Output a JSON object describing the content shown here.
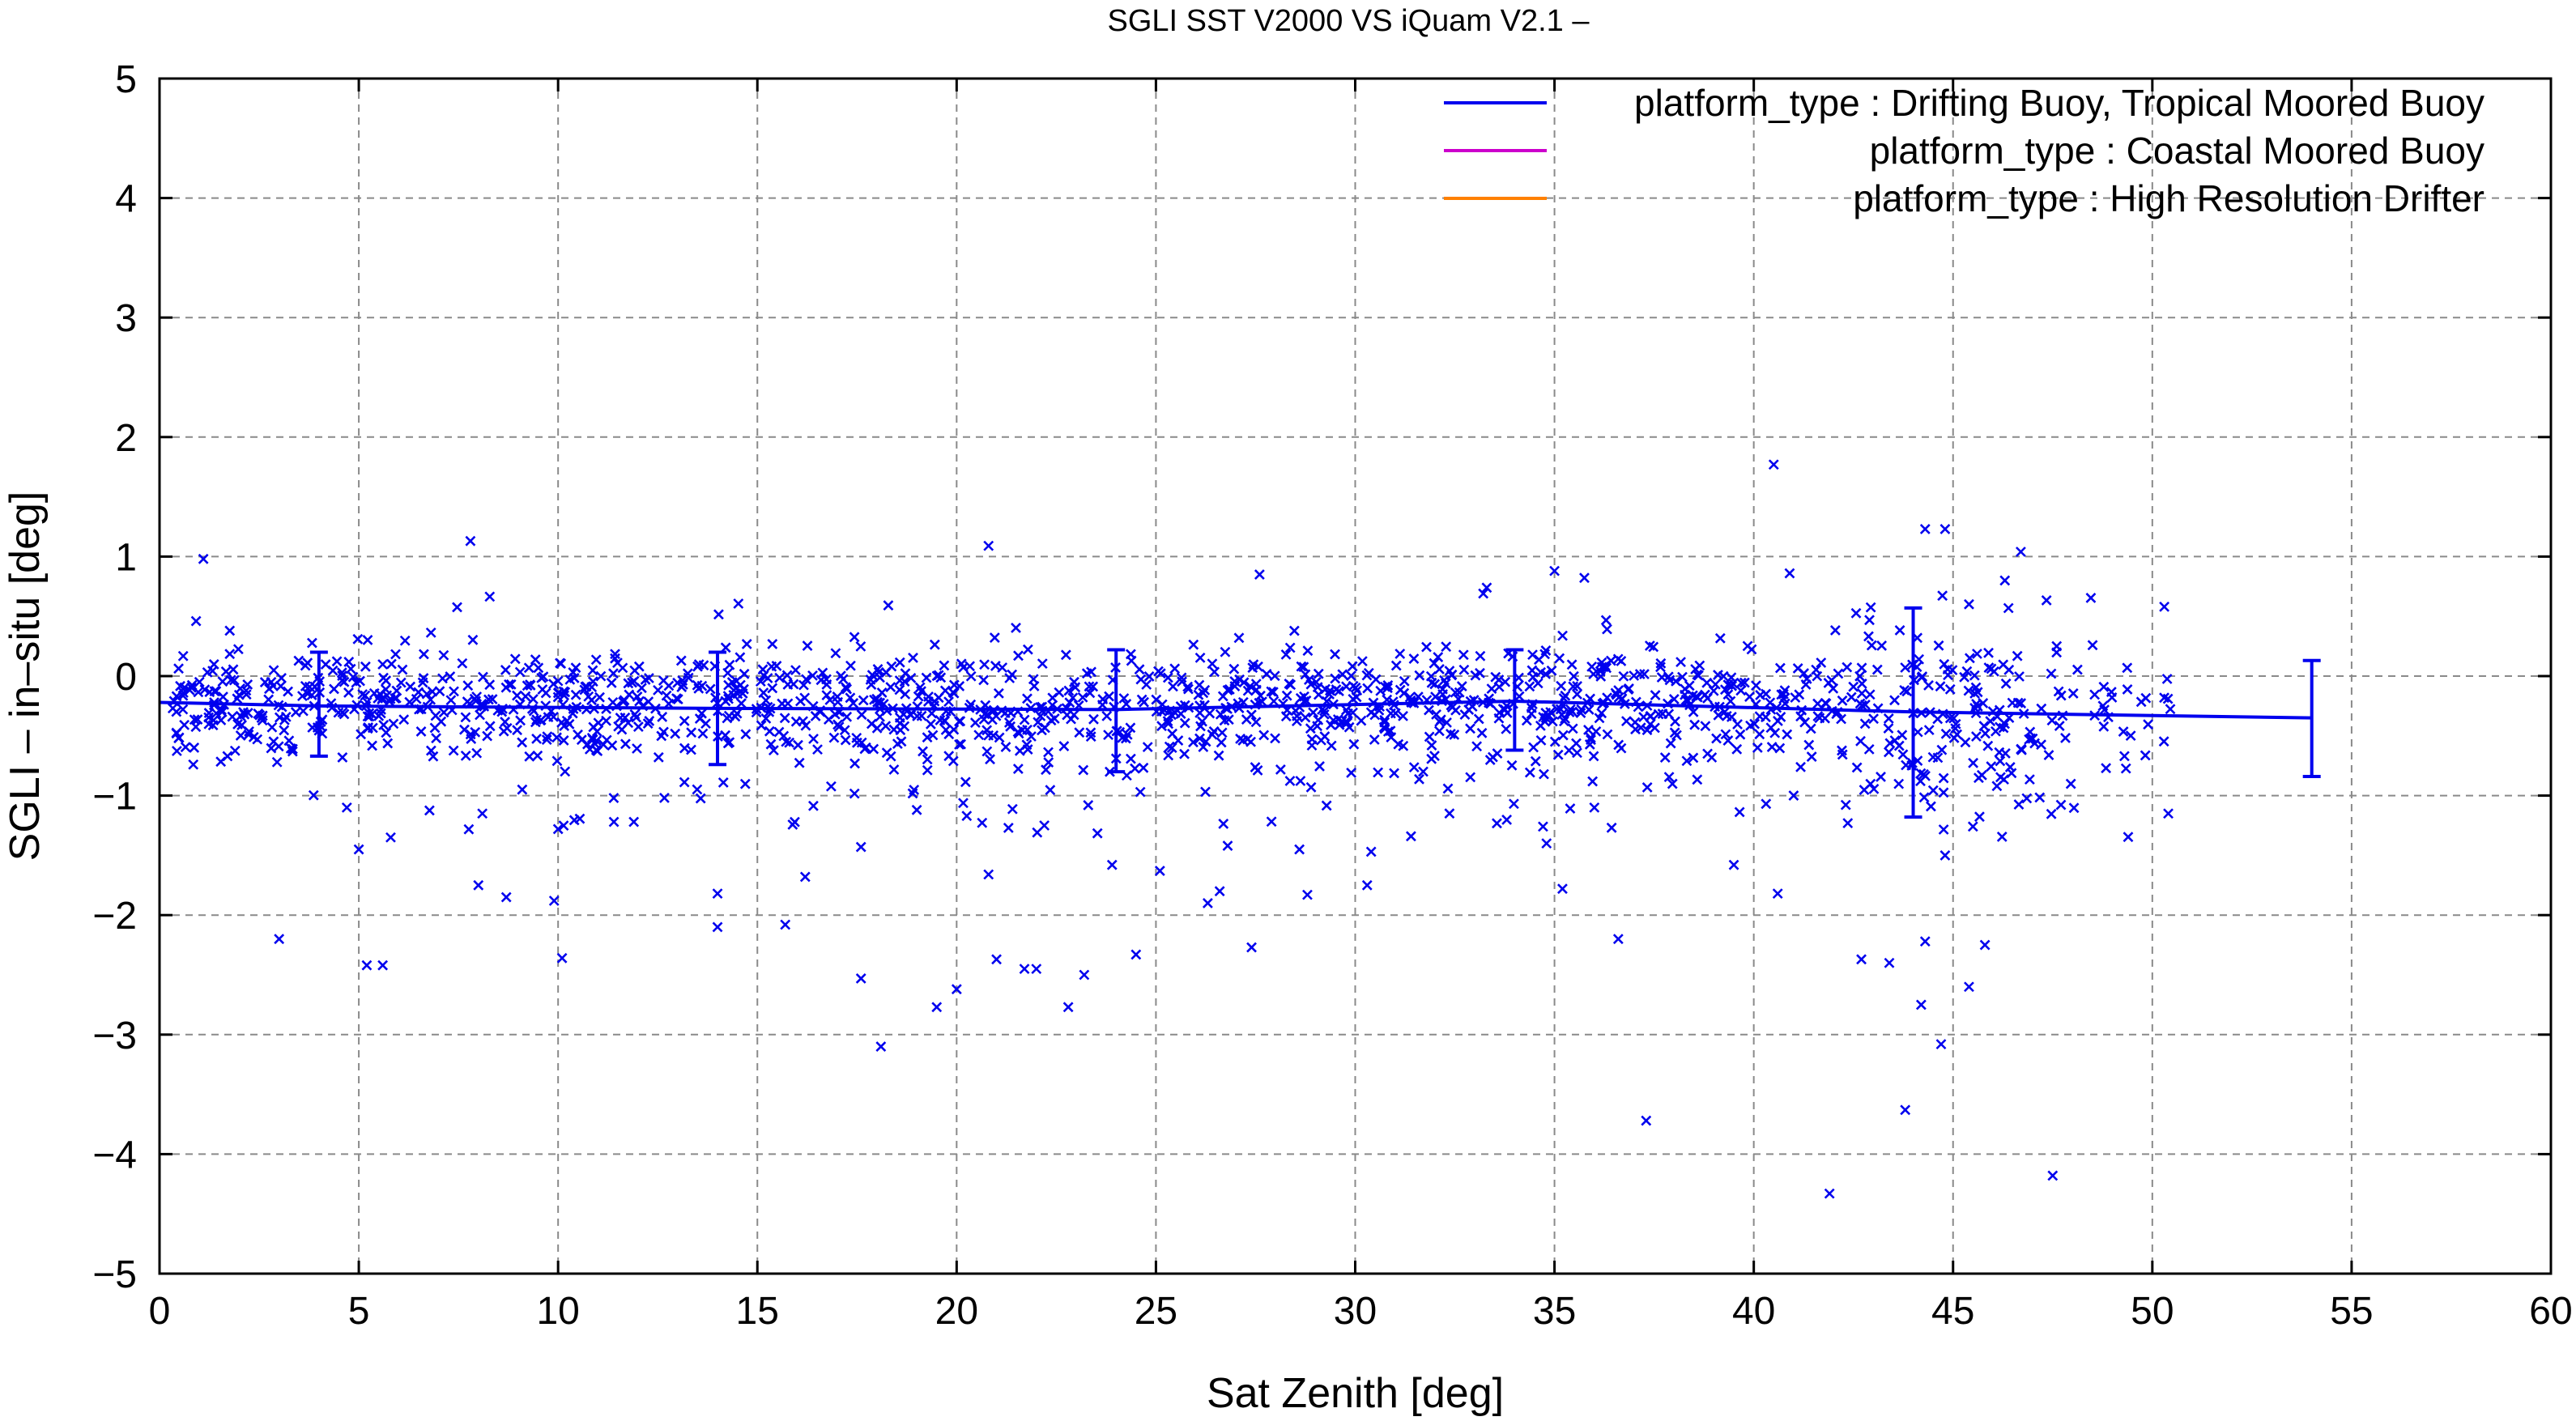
{
  "chart_data": {
    "type": "scatter",
    "title": "SGLI SST V2000 VS iQuam V2.1  –",
    "xlabel": "Sat Zenith [deg]",
    "ylabel": "SGLI – in–situ [deg]",
    "xlim": [
      0,
      60
    ],
    "ylim": [
      -5,
      5
    ],
    "x_ticks": [
      0,
      5,
      10,
      15,
      20,
      25,
      30,
      35,
      40,
      45,
      50,
      55,
      60
    ],
    "y_ticks": [
      -5,
      -4,
      -3,
      -2,
      -1,
      0,
      1,
      2,
      3,
      4,
      5
    ],
    "x_tick_labels": [
      "0",
      "5",
      "10",
      "15",
      "20",
      "25",
      "30",
      "35",
      "40",
      "45",
      "50",
      "55",
      "60"
    ],
    "y_tick_labels": [
      "−5",
      "−4",
      "−3",
      "−2",
      "−1",
      "0",
      "1",
      "2",
      "3",
      "4",
      "5"
    ],
    "grid": true,
    "legend_position": "top-right",
    "legend": [
      {
        "label": "platform_type : Drifting Buoy, Tropical Moored Buoy",
        "color": "#0000ee"
      },
      {
        "label": "platform_type : Coastal Moored Buoy",
        "color": "#cc00cc"
      },
      {
        "label": "platform_type : High Resolution Drifter",
        "color": "#ff8000"
      }
    ],
    "series": [
      {
        "name": "platform_type : Drifting Buoy, Tropical Moored Buoy",
        "color": "#0000ee",
        "marker": "x",
        "mean_line": {
          "x": [
            0,
            4,
            14,
            24,
            34,
            44,
            54
          ],
          "y": [
            -0.22,
            -0.25,
            -0.27,
            -0.28,
            -0.21,
            -0.3,
            -0.35
          ]
        },
        "error_bars": [
          {
            "x": 4,
            "mean": -0.25,
            "low": -0.67,
            "high": 0.2
          },
          {
            "x": 14,
            "mean": -0.27,
            "low": -0.74,
            "high": 0.2
          },
          {
            "x": 24,
            "mean": -0.28,
            "low": -0.8,
            "high": 0.22
          },
          {
            "x": 34,
            "mean": -0.21,
            "low": -0.62,
            "high": 0.22
          },
          {
            "x": 44,
            "mean": -0.3,
            "low": -1.18,
            "high": 0.57
          },
          {
            "x": 54,
            "mean": -0.35,
            "low": -0.84,
            "high": 0.13
          }
        ],
        "outliers": [
          [
            1.1,
            0.98
          ],
          [
            3.0,
            -2.2
          ],
          [
            4.7,
            -1.1
          ],
          [
            5.0,
            -1.45
          ],
          [
            5.2,
            -2.42
          ],
          [
            5.6,
            -2.42
          ],
          [
            5.8,
            -1.35
          ],
          [
            7.8,
            1.13
          ],
          [
            8.0,
            -1.75
          ],
          [
            8.1,
            -1.15
          ],
          [
            8.7,
            -1.85
          ],
          [
            9.1,
            -0.95
          ],
          [
            9.9,
            -1.88
          ],
          [
            10.0,
            -1.28
          ],
          [
            10.1,
            -2.36
          ],
          [
            11.4,
            -1.22
          ],
          [
            11.9,
            -1.22
          ],
          [
            14.0,
            -1.82
          ],
          [
            14.0,
            -2.1
          ],
          [
            15.7,
            -2.08
          ],
          [
            16.2,
            -1.68
          ],
          [
            17.6,
            -2.53
          ],
          [
            17.6,
            -1.43
          ],
          [
            18.1,
            -3.1
          ],
          [
            19.0,
            -1.12
          ],
          [
            19.5,
            -2.77
          ],
          [
            20.0,
            -2.62
          ],
          [
            20.8,
            1.09
          ],
          [
            20.8,
            -1.66
          ],
          [
            21.0,
            -2.37
          ],
          [
            21.3,
            -1.27
          ],
          [
            21.7,
            -2.45
          ],
          [
            22.2,
            -1.25
          ],
          [
            22.0,
            -2.45
          ],
          [
            22.8,
            -2.77
          ],
          [
            23.2,
            -2.5
          ],
          [
            23.3,
            -1.08
          ],
          [
            23.9,
            -1.58
          ],
          [
            24.5,
            -2.33
          ],
          [
            25.1,
            -1.63
          ],
          [
            26.3,
            -1.9
          ],
          [
            26.6,
            -1.8
          ],
          [
            26.8,
            -1.42
          ],
          [
            27.4,
            -2.27
          ],
          [
            27.6,
            0.85
          ],
          [
            28.6,
            -1.45
          ],
          [
            28.8,
            -1.83
          ],
          [
            30.3,
            -1.75
          ],
          [
            30.4,
            -1.47
          ],
          [
            31.4,
            -1.34
          ],
          [
            33.3,
            0.74
          ],
          [
            34.8,
            -1.4
          ],
          [
            35.0,
            0.88
          ],
          [
            35.2,
            -1.78
          ],
          [
            36.0,
            -1.1
          ],
          [
            36.6,
            -2.2
          ],
          [
            37.3,
            -3.72
          ],
          [
            39.5,
            -1.58
          ],
          [
            40.5,
            1.77
          ],
          [
            40.6,
            -1.82
          ],
          [
            40.9,
            0.86
          ],
          [
            41.0,
            -1.0
          ],
          [
            41.9,
            -4.33
          ],
          [
            42.7,
            -2.37
          ],
          [
            43.4,
            -2.4
          ],
          [
            43.8,
            -3.63
          ],
          [
            44.2,
            -2.75
          ],
          [
            44.3,
            -2.22
          ],
          [
            44.3,
            1.23
          ],
          [
            44.7,
            -3.08
          ],
          [
            44.8,
            1.23
          ],
          [
            44.8,
            -1.5
          ],
          [
            45.4,
            -2.6
          ],
          [
            45.8,
            -2.25
          ],
          [
            46.3,
            0.8
          ],
          [
            46.1,
            -0.92
          ],
          [
            46.7,
            1.04
          ],
          [
            47.5,
            -4.18
          ],
          [
            47.6,
            0.25
          ],
          [
            49.3,
            -0.67
          ],
          [
            50.3,
            0.58
          ],
          [
            50.4,
            -1.15
          ]
        ]
      }
    ]
  }
}
